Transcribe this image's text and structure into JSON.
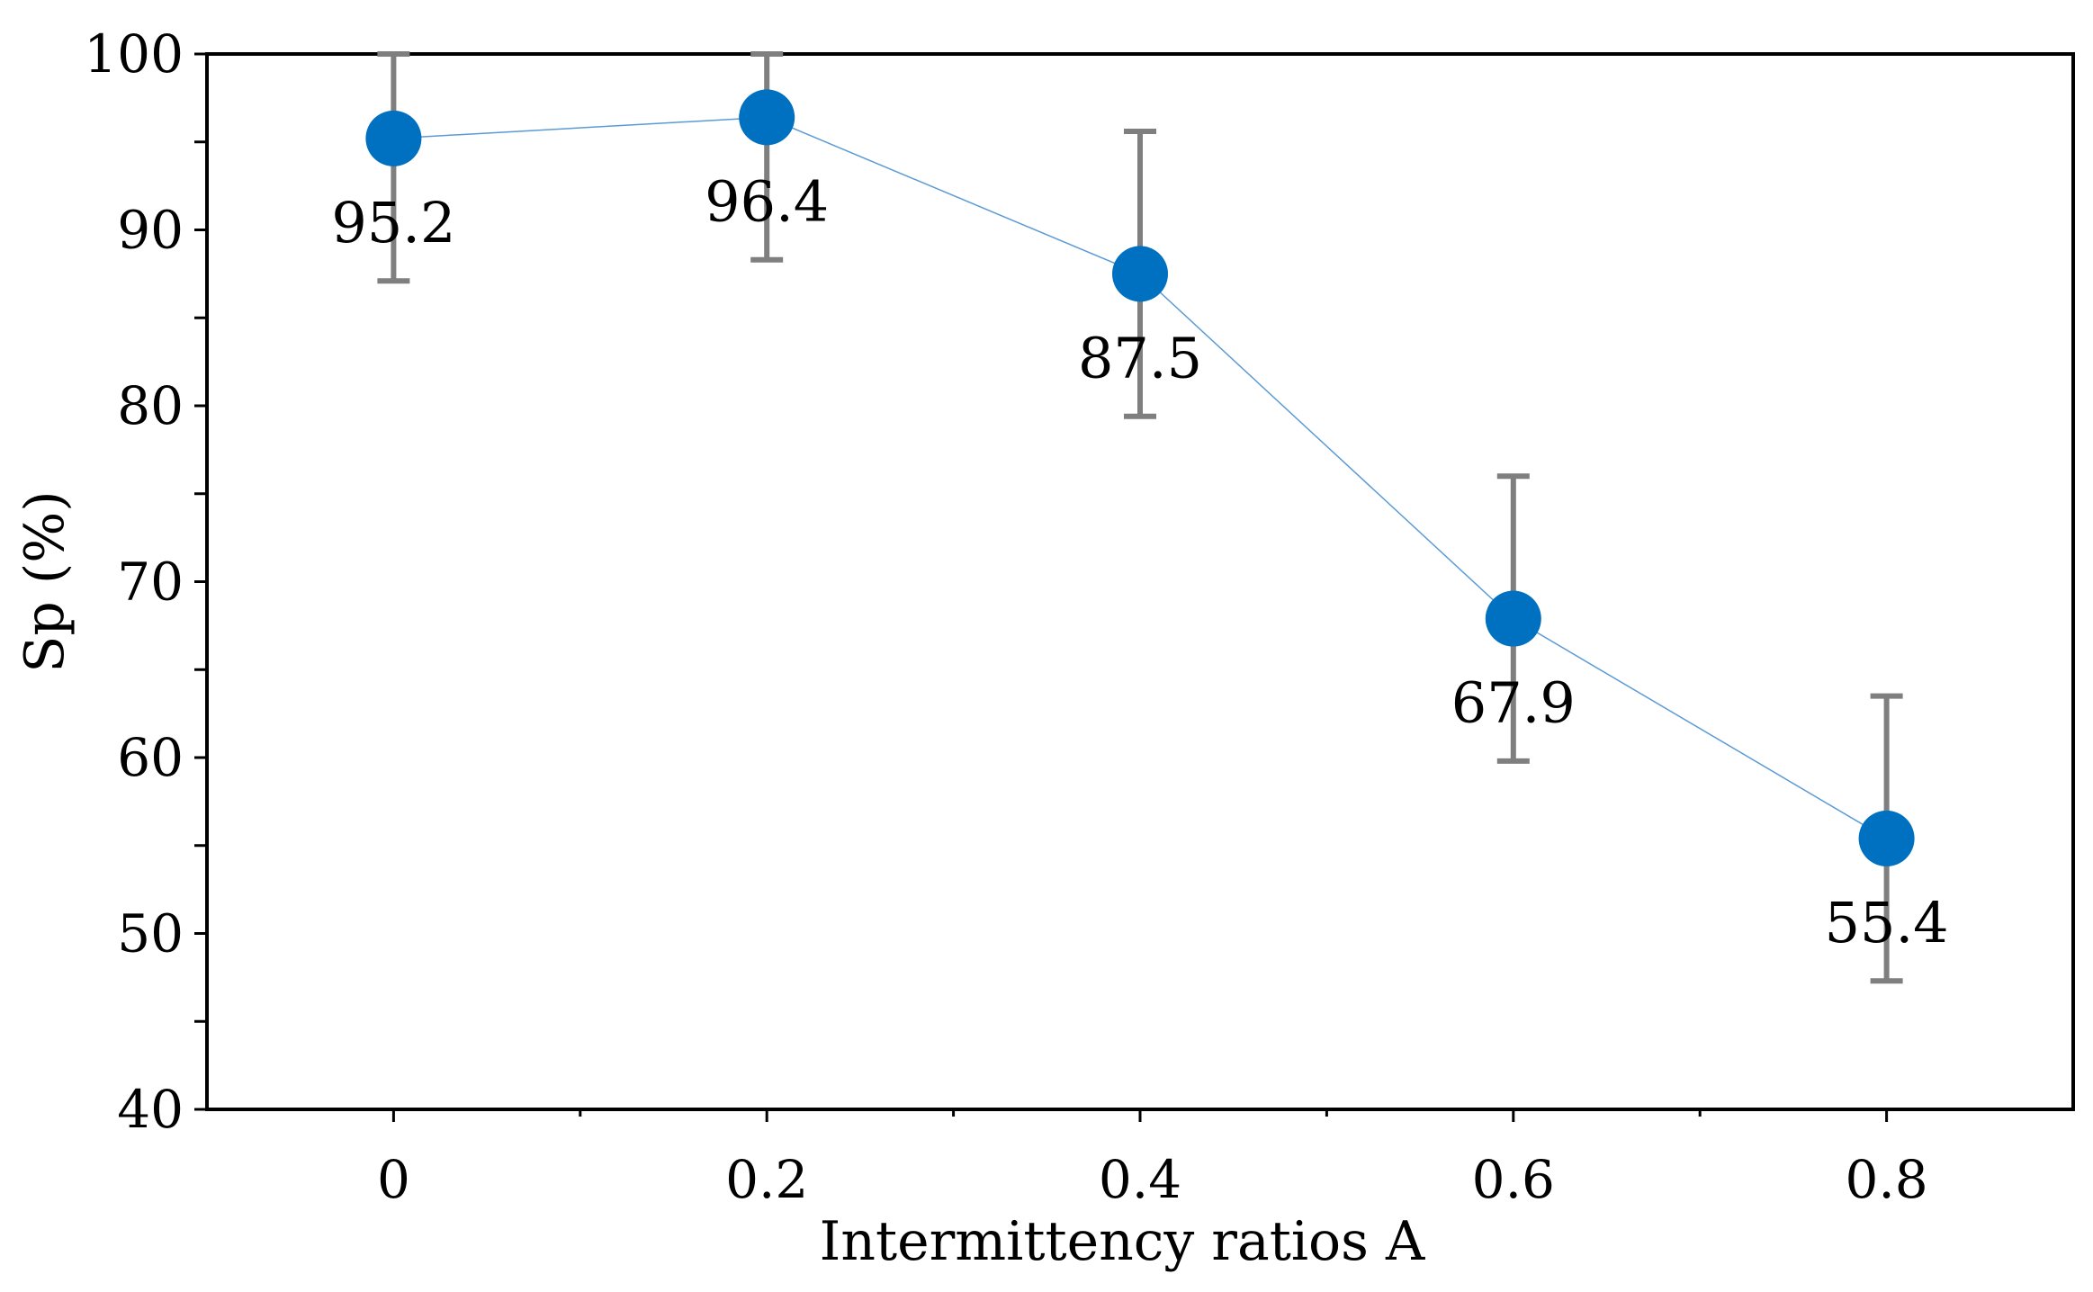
{
  "chart_data": {
    "type": "line",
    "title": "",
    "xlabel": "Intermittency ratios A",
    "ylabel": "Sp (%)",
    "x": [
      0,
      0.2,
      0.4,
      0.6,
      0.8
    ],
    "x_tick_labels": [
      "0",
      "0.2",
      "0.4",
      "0.6",
      "0.8"
    ],
    "y_tick_labels": [
      "40",
      "50",
      "60",
      "70",
      "80",
      "90",
      "100"
    ],
    "xlim": [
      -0.1,
      0.9
    ],
    "ylim": [
      40,
      100
    ],
    "series": [
      {
        "name": "Sp",
        "values": [
          95.2,
          96.4,
          87.5,
          67.9,
          55.4
        ],
        "error_upper": [
          100,
          100,
          95.6,
          76,
          63.5
        ],
        "error_lower": [
          87.1,
          88.3,
          79.4,
          59.8,
          47.3
        ],
        "data_labels": [
          "95.2",
          "96.4",
          "87.5",
          "67.9",
          "55.4"
        ]
      }
    ],
    "grid": false,
    "colors": {
      "marker": "#0070c0",
      "line": "#5b9bd5",
      "error": "#7f7f7f"
    }
  }
}
